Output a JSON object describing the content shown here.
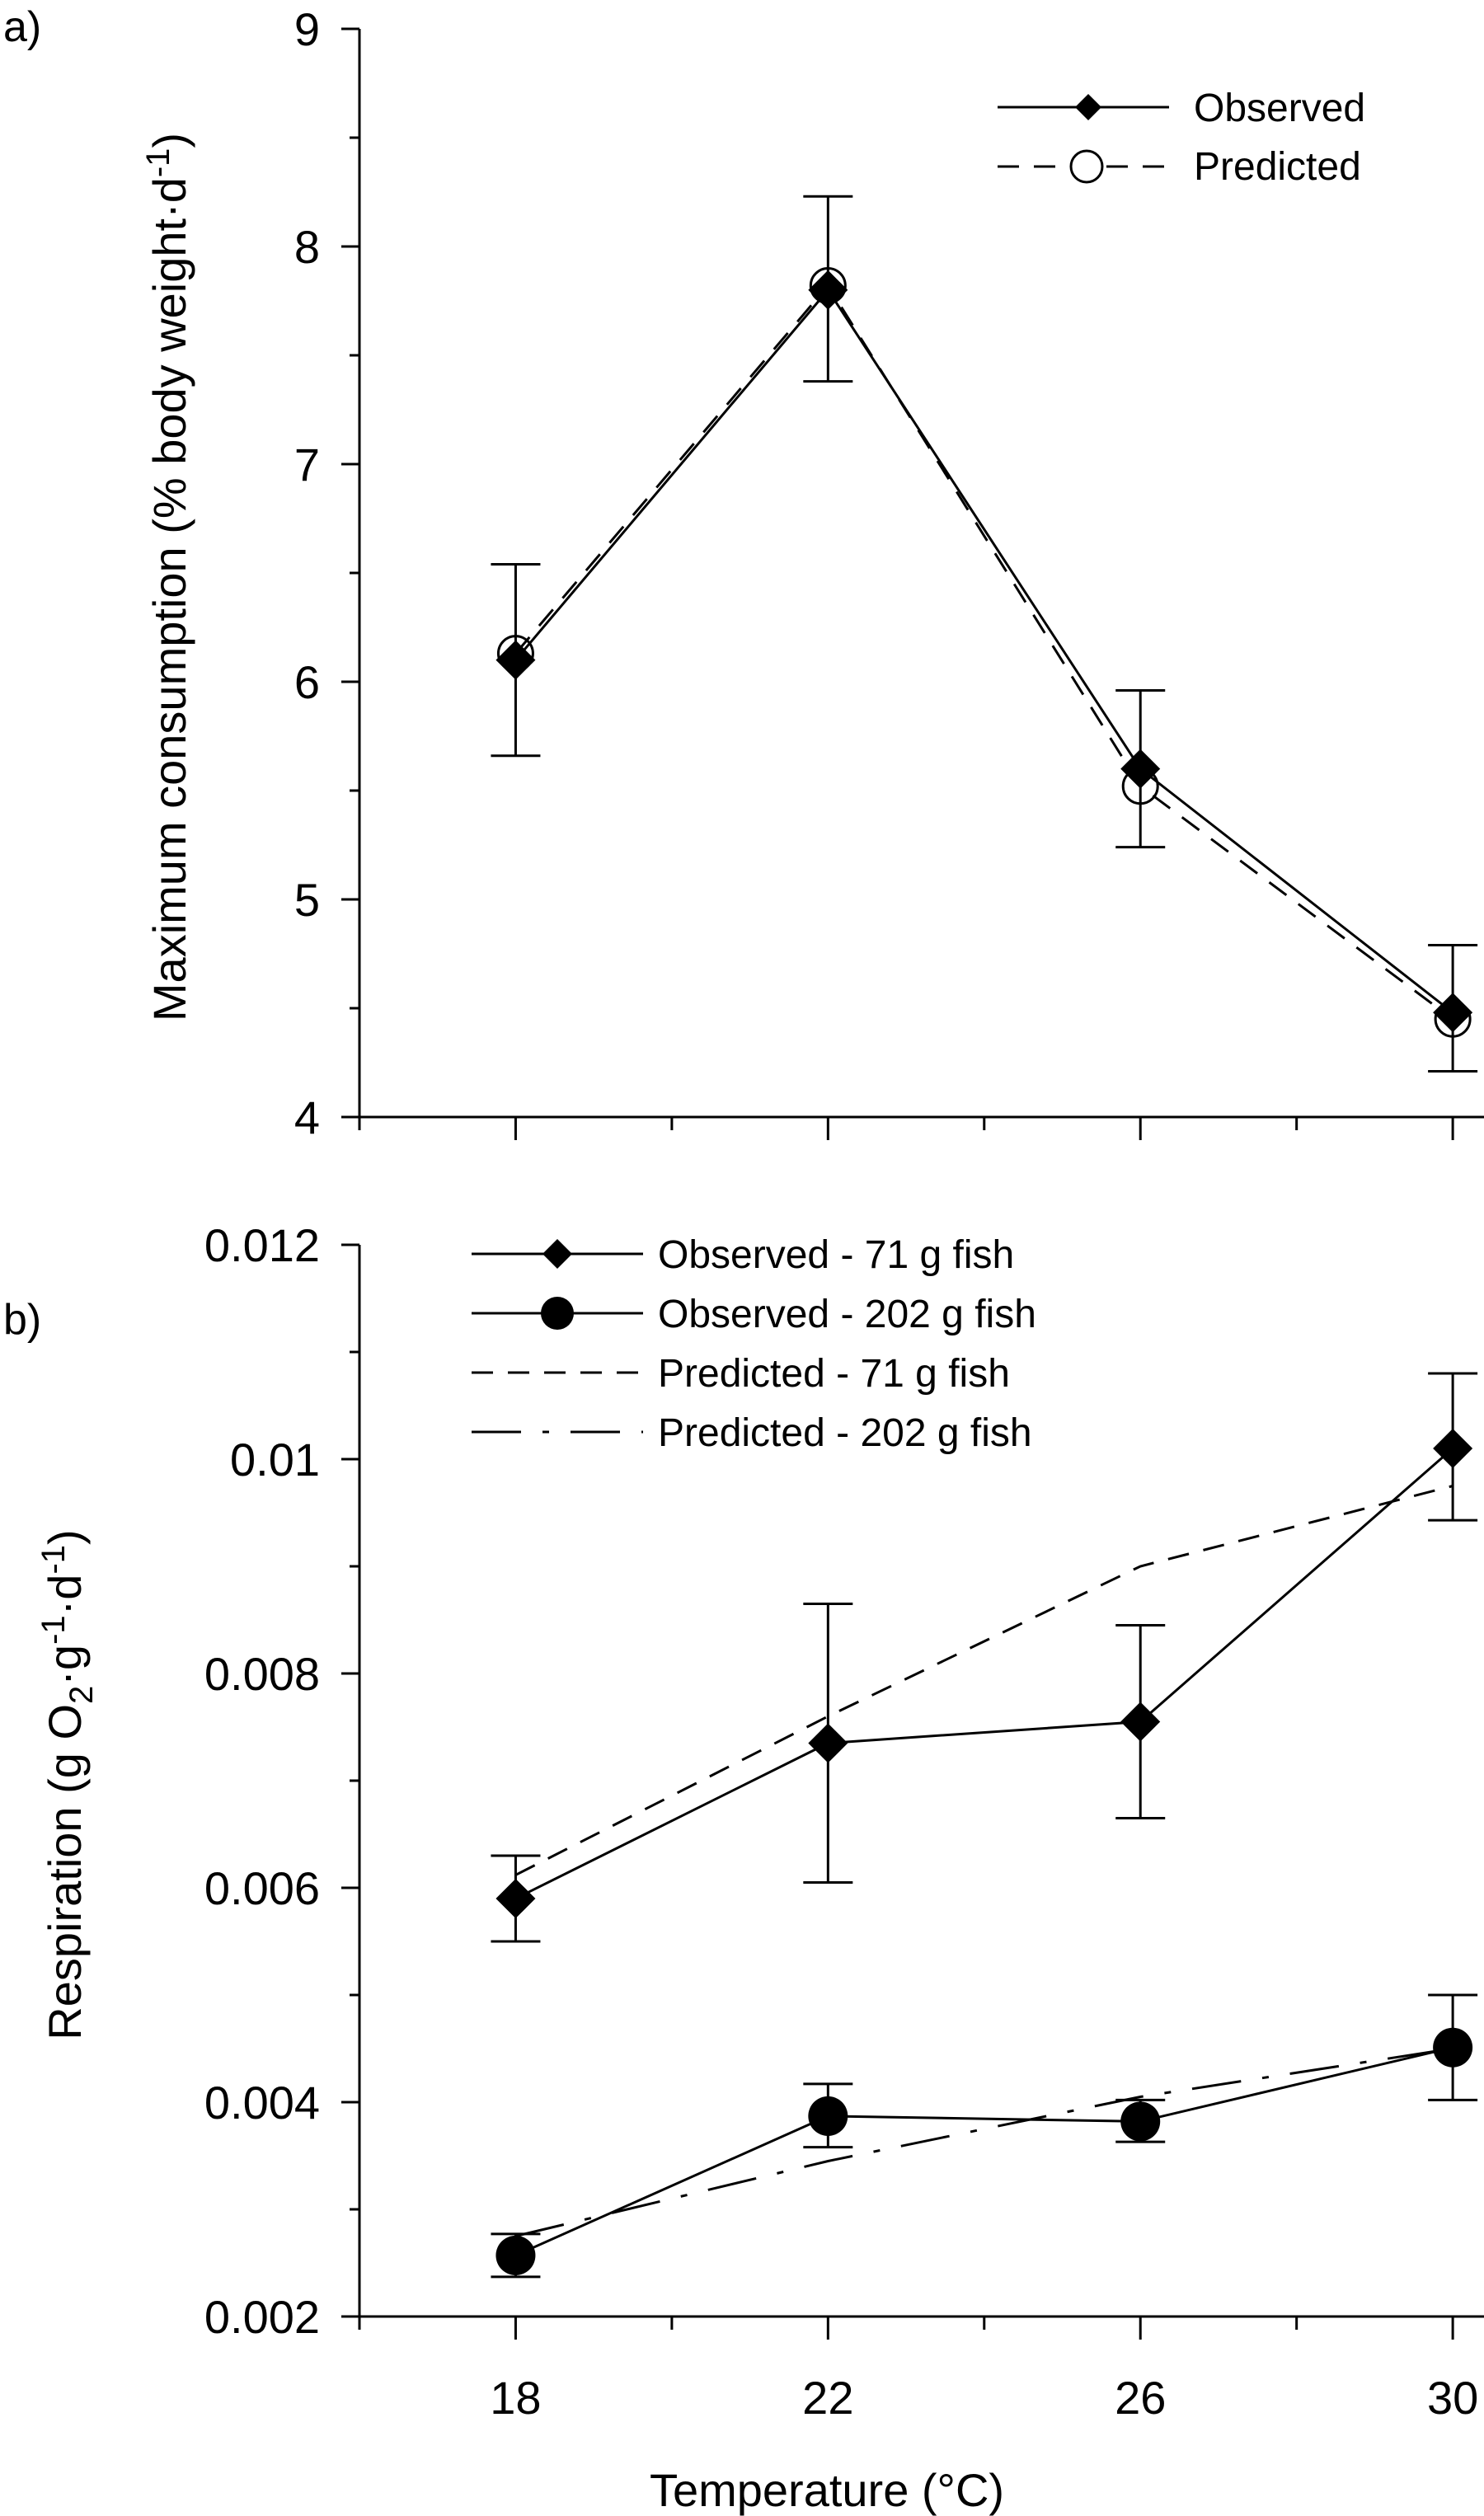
{
  "chart_data": [
    {
      "panel_label": "a)",
      "type": "line",
      "xlabel": "",
      "ylabel": "Maximum consumption (% body weight·d",
      "ylabel_sup": "-1",
      "ylabel_end": ")",
      "x": [
        18,
        22,
        26,
        30
      ],
      "xlim": [
        16,
        30.4
      ],
      "ylim": [
        4,
        9
      ],
      "yticks": [
        "4",
        "5",
        "6",
        "7",
        "8",
        "9"
      ],
      "ytick_values": [
        4,
        5,
        6,
        7,
        8,
        9
      ],
      "legend_position": "top-right",
      "series": [
        {
          "name": "Observed",
          "marker": "diamond",
          "line": "solid",
          "values": [
            6.1,
            7.8,
            5.6,
            4.48
          ],
          "err_low": [
            5.66,
            7.38,
            5.24,
            4.21
          ],
          "err_high": [
            6.54,
            8.23,
            5.96,
            4.79
          ]
        },
        {
          "name": "Predicted",
          "marker": "open-circle",
          "line": "dashed",
          "values": [
            6.13,
            7.82,
            5.52,
            4.45
          ]
        }
      ]
    },
    {
      "panel_label": "b)",
      "type": "line",
      "xlabel": "Temperature (°C)",
      "ylabel_parts": [
        "Respiration (g O",
        "2",
        "·g",
        "-1",
        "·d",
        "-1",
        ")"
      ],
      "x": [
        18,
        22,
        26,
        30
      ],
      "xticks": [
        "18",
        "22",
        "26",
        "30"
      ],
      "xlim": [
        16,
        30.4
      ],
      "ylim": [
        0.002,
        0.012
      ],
      "yticks": [
        "0.002",
        "0.004",
        "0.006",
        "0.008",
        "0.01",
        "0.012"
      ],
      "ytick_values": [
        0.002,
        0.004,
        0.006,
        0.008,
        0.01,
        0.012
      ],
      "legend_position": "top-left",
      "series": [
        {
          "name": "Observed - 71 g fish",
          "marker": "diamond",
          "line": "solid",
          "values": [
            0.0059,
            0.00735,
            0.00755,
            0.0101
          ],
          "err_low": [
            0.0055,
            0.00605,
            0.00665,
            0.00943
          ],
          "err_high": [
            0.0063,
            0.00865,
            0.00845,
            0.0108
          ]
        },
        {
          "name": "Observed - 202 g fish",
          "marker": "filled-circle",
          "line": "solid",
          "values": [
            0.00257,
            0.00387,
            0.00382,
            0.00451
          ],
          "err_low": [
            0.00237,
            0.00358,
            0.00363,
            0.00402
          ],
          "err_high": [
            0.00277,
            0.00417,
            0.00402,
            0.005
          ]
        },
        {
          "name": "Predicted - 71 g fish",
          "marker": "none",
          "line": "dashed",
          "values": [
            0.00612,
            0.0076,
            0.009,
            0.00975
          ]
        },
        {
          "name": "Predicted - 202 g fish",
          "marker": "none",
          "line": "long-dash-dot",
          "values": [
            0.00275,
            0.00345,
            0.00405,
            0.0045
          ]
        }
      ]
    }
  ]
}
